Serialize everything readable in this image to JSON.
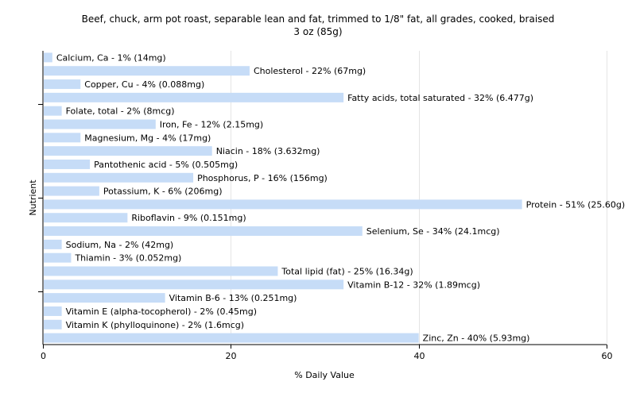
{
  "chart_data": {
    "type": "bar",
    "orientation": "horizontal",
    "title": "Beef, chuck, arm pot roast, separable lean and fat, trimmed to 1/8\" fat, all grades, cooked, braised",
    "subtitle": "3 oz (85g)",
    "xlabel": "% Daily Value",
    "ylabel": "Nutrient",
    "xlim": [
      0,
      60
    ],
    "xticks": [
      0,
      20,
      40,
      60
    ],
    "grid": true,
    "bar_color": "#c6dcf7",
    "categories": [
      "Calcium, Ca",
      "Cholesterol",
      "Copper, Cu",
      "Fatty acids, total saturated",
      "Folate, total",
      "Iron, Fe",
      "Magnesium, Mg",
      "Niacin",
      "Pantothenic acid",
      "Phosphorus, P",
      "Potassium, K",
      "Protein",
      "Riboflavin",
      "Selenium, Se",
      "Sodium, Na",
      "Thiamin",
      "Total lipid (fat)",
      "Vitamin B-12",
      "Vitamin B-6",
      "Vitamin E (alpha-tocopherol)",
      "Vitamin K (phylloquinone)",
      "Zinc, Zn"
    ],
    "values": [
      1,
      22,
      4,
      32,
      2,
      12,
      4,
      18,
      5,
      16,
      6,
      51,
      9,
      34,
      2,
      3,
      25,
      32,
      13,
      2,
      2,
      40
    ],
    "labels": [
      "Calcium, Ca - 1% (14mg)",
      "Cholesterol - 22% (67mg)",
      "Copper, Cu - 4% (0.088mg)",
      "Fatty acids, total saturated - 32% (6.477g)",
      "Folate, total - 2% (8mcg)",
      "Iron, Fe - 12% (2.15mg)",
      "Magnesium, Mg - 4% (17mg)",
      "Niacin - 18% (3.632mg)",
      "Pantothenic acid - 5% (0.505mg)",
      "Phosphorus, P - 16% (156mg)",
      "Potassium, K - 6% (206mg)",
      "Protein - 51% (25.60g)",
      "Riboflavin - 9% (0.151mg)",
      "Selenium, Se - 34% (24.1mcg)",
      "Sodium, Na - 2% (42mg)",
      "Thiamin - 3% (0.052mg)",
      "Total lipid (fat) - 25% (16.34g)",
      "Vitamin B-12 - 32% (1.89mcg)",
      "Vitamin B-6 - 13% (0.251mg)",
      "Vitamin E (alpha-tocopherol) - 2% (0.45mg)",
      "Vitamin K (phylloquinone) - 2% (1.6mcg)",
      "Zinc, Zn - 40% (5.93mg)"
    ]
  }
}
